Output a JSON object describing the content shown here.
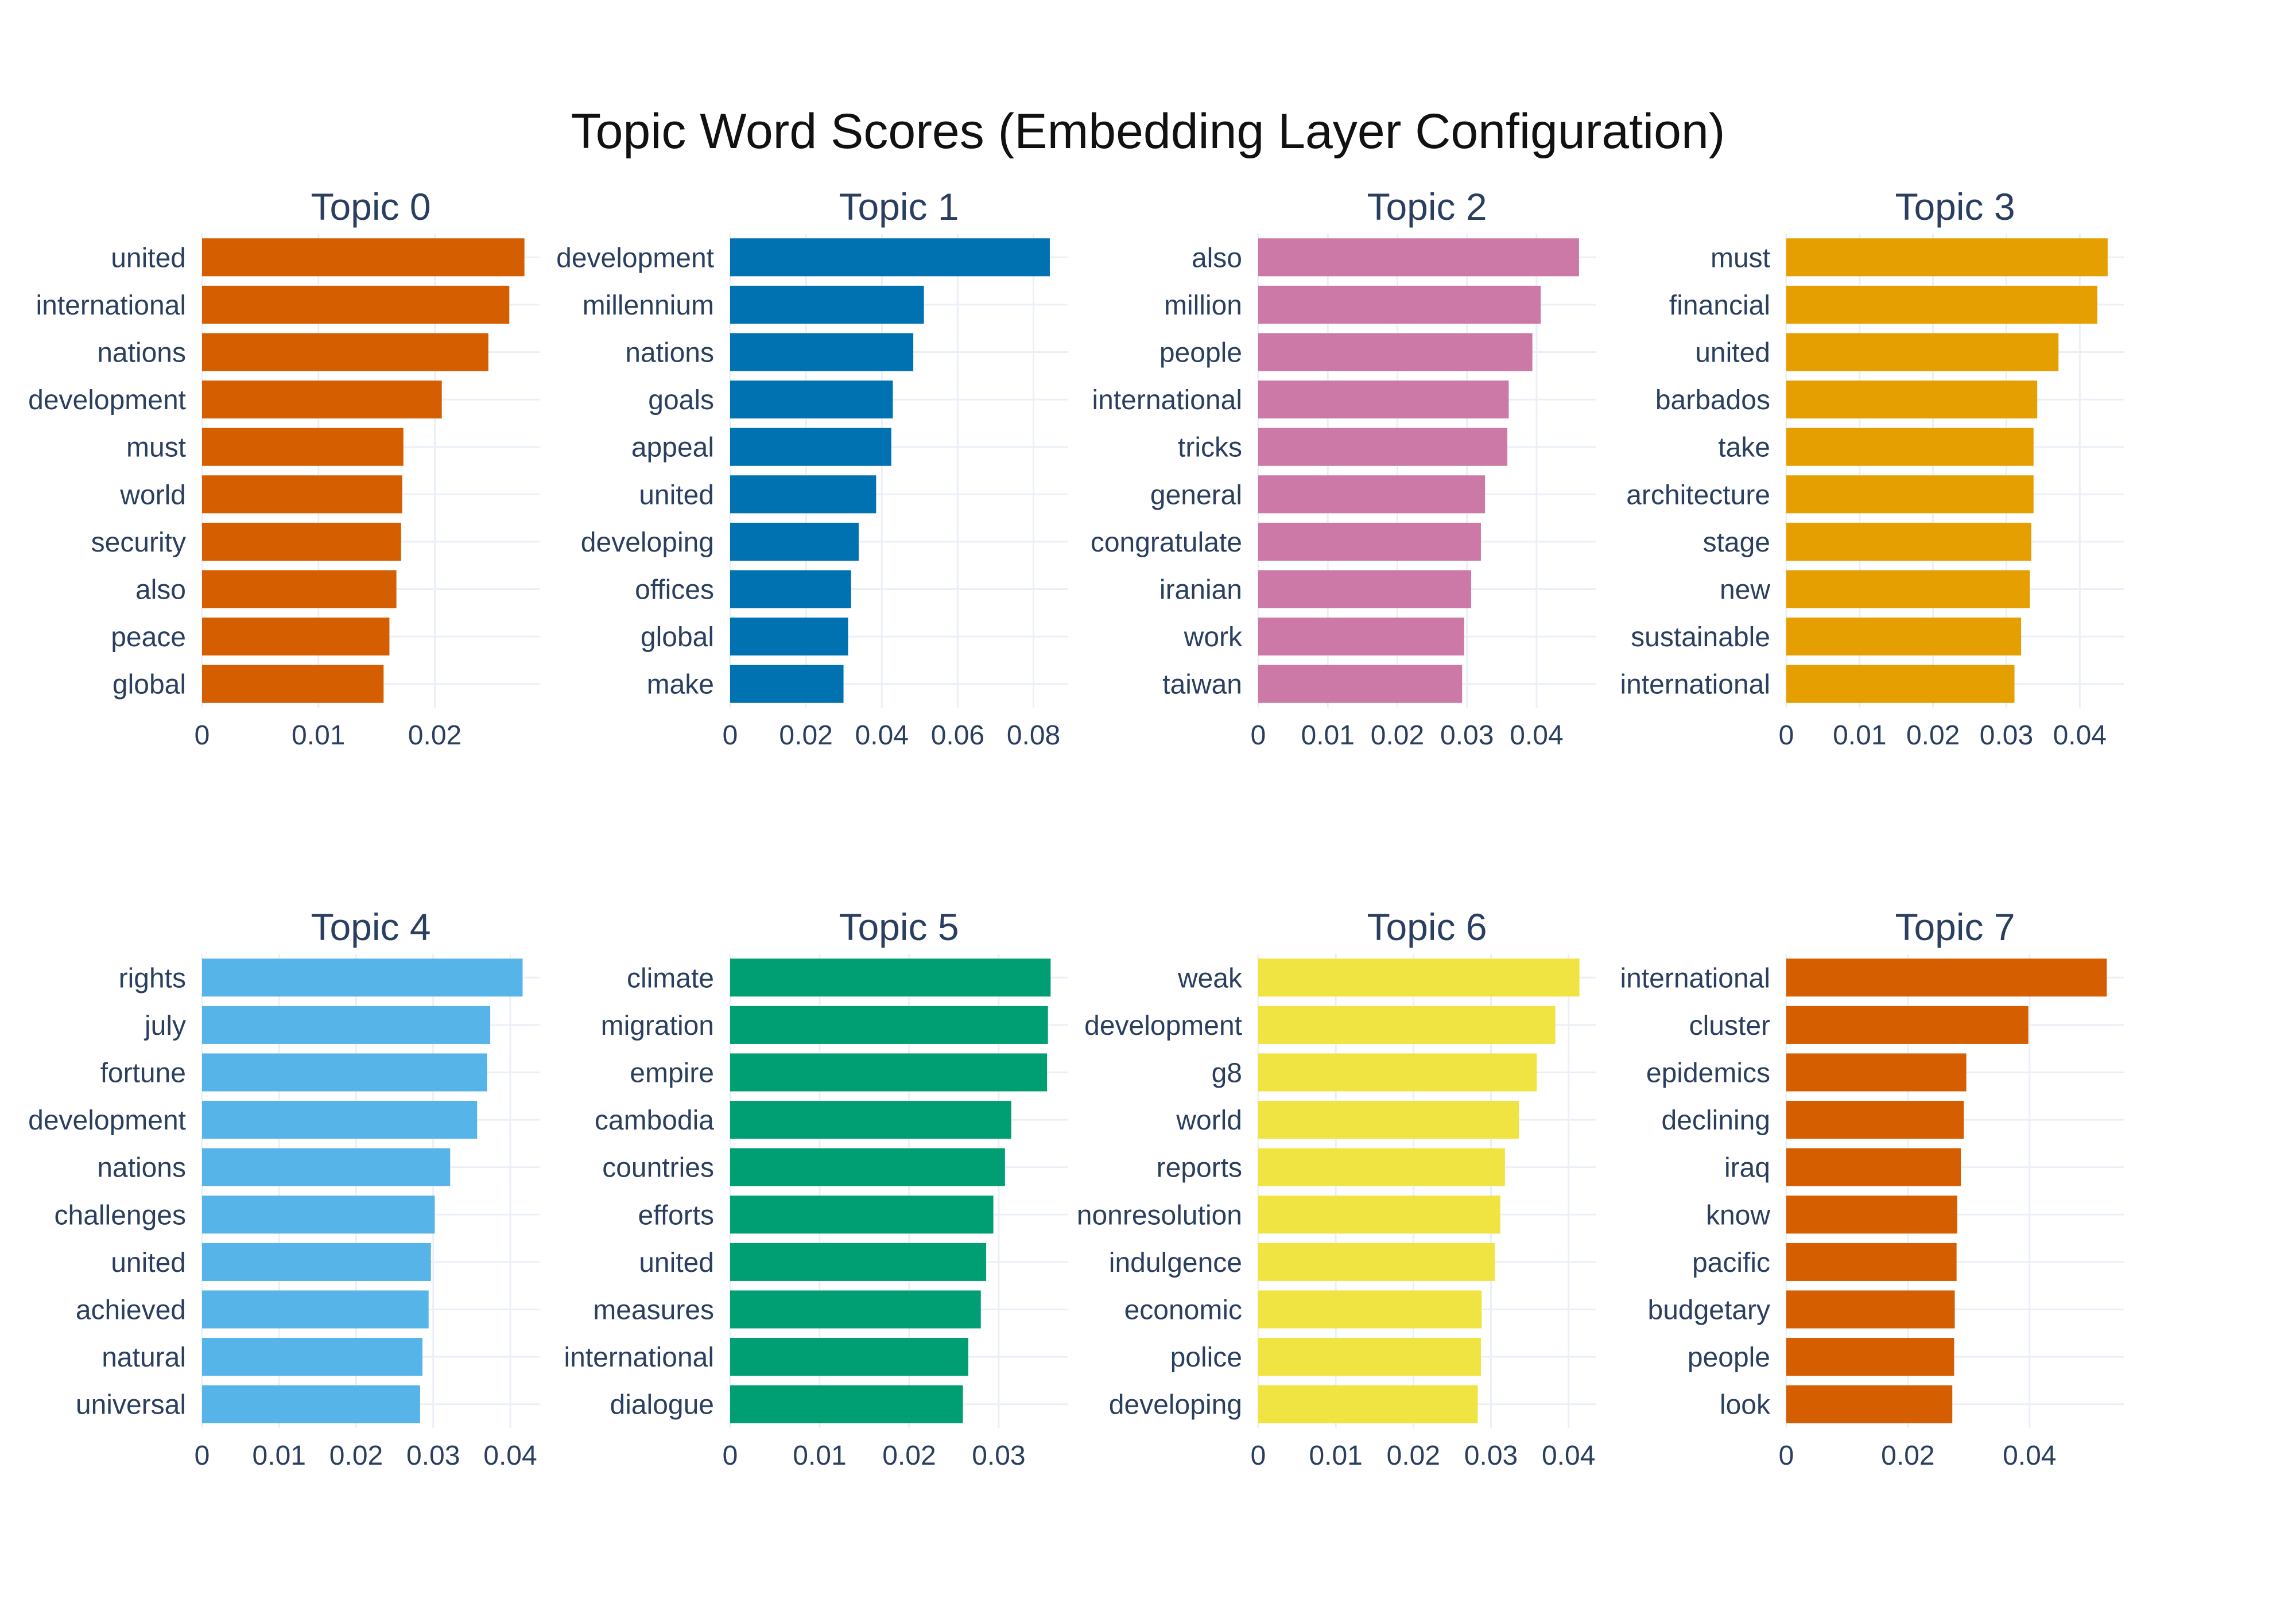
{
  "title": "Topic Word Scores (Embedding Layer Configuration)",
  "chart_data": [
    {
      "type": "bar",
      "orientation": "horizontal",
      "title": "Topic 0",
      "color": "#D55E00",
      "categories": [
        "united",
        "international",
        "nations",
        "development",
        "must",
        "world",
        "security",
        "also",
        "peace",
        "global"
      ],
      "values": [
        0.0277,
        0.0264,
        0.0246,
        0.0206,
        0.0173,
        0.0172,
        0.0171,
        0.0167,
        0.0161,
        0.0156
      ],
      "xlim": [
        0,
        0.029
      ],
      "xticks": [
        0,
        0.01,
        0.02
      ],
      "xtick_labels": [
        "0",
        "0.01",
        "0.02"
      ]
    },
    {
      "type": "bar",
      "orientation": "horizontal",
      "title": "Topic 1",
      "color": "#0072B2",
      "categories": [
        "development",
        "millennium",
        "nations",
        "goals",
        "appeal",
        "united",
        "developing",
        "offices",
        "global",
        "make"
      ],
      "values": [
        0.0843,
        0.0511,
        0.0483,
        0.0429,
        0.0425,
        0.0385,
        0.0339,
        0.0319,
        0.0311,
        0.0299
      ],
      "xlim": [
        0,
        0.089
      ],
      "xticks": [
        0,
        0.02,
        0.04,
        0.06,
        0.08
      ],
      "xtick_labels": [
        "0",
        "0.02",
        "0.04",
        "0.06",
        "0.08"
      ]
    },
    {
      "type": "bar",
      "orientation": "horizontal",
      "title": "Topic 2",
      "color": "#CC79A7",
      "categories": [
        "also",
        "million",
        "people",
        "international",
        "tricks",
        "general",
        "congratulate",
        "iranian",
        "work",
        "taiwan"
      ],
      "values": [
        0.0461,
        0.0406,
        0.0394,
        0.036,
        0.0358,
        0.0326,
        0.032,
        0.0306,
        0.0296,
        0.0293
      ],
      "xlim": [
        0,
        0.0485
      ],
      "xticks": [
        0,
        0.01,
        0.02,
        0.03,
        0.04
      ],
      "xtick_labels": [
        "0",
        "0.01",
        "0.02",
        "0.03",
        "0.04"
      ]
    },
    {
      "type": "bar",
      "orientation": "horizontal",
      "title": "Topic 3",
      "color": "#E69F00",
      "categories": [
        "must",
        "financial",
        "united",
        "barbados",
        "take",
        "architecture",
        "stage",
        "new",
        "sustainable",
        "international"
      ],
      "values": [
        0.0438,
        0.0424,
        0.0371,
        0.0342,
        0.0337,
        0.0337,
        0.0334,
        0.0332,
        0.032,
        0.0311
      ],
      "xlim": [
        0,
        0.046
      ],
      "xticks": [
        0,
        0.01,
        0.02,
        0.03,
        0.04
      ],
      "xtick_labels": [
        "0",
        "0.01",
        "0.02",
        "0.03",
        "0.04"
      ]
    },
    {
      "type": "bar",
      "orientation": "horizontal",
      "title": "Topic 4",
      "color": "#56B4E9",
      "categories": [
        "rights",
        "july",
        "fortune",
        "development",
        "nations",
        "challenges",
        "united",
        "achieved",
        "natural",
        "universal"
      ],
      "values": [
        0.0416,
        0.0374,
        0.037,
        0.0357,
        0.0322,
        0.0302,
        0.0297,
        0.0294,
        0.0286,
        0.0283
      ],
      "xlim": [
        0,
        0.0438
      ],
      "xticks": [
        0,
        0.01,
        0.02,
        0.03,
        0.04
      ],
      "xtick_labels": [
        "0",
        "0.01",
        "0.02",
        "0.03",
        "0.04"
      ]
    },
    {
      "type": "bar",
      "orientation": "horizontal",
      "title": "Topic 5",
      "color": "#009E73",
      "categories": [
        "climate",
        "migration",
        "empire",
        "cambodia",
        "countries",
        "efforts",
        "united",
        "measures",
        "international",
        "dialogue"
      ],
      "values": [
        0.0358,
        0.0355,
        0.0354,
        0.0314,
        0.0307,
        0.0294,
        0.0286,
        0.028,
        0.0266,
        0.026
      ],
      "xlim": [
        0,
        0.0377
      ],
      "xticks": [
        0,
        0.01,
        0.02,
        0.03
      ],
      "xtick_labels": [
        "0",
        "0.01",
        "0.02",
        "0.03"
      ]
    },
    {
      "type": "bar",
      "orientation": "horizontal",
      "title": "Topic 6",
      "color": "#F0E442",
      "categories": [
        "weak",
        "development",
        "g8",
        "world",
        "reports",
        "nonresolution",
        "indulgence",
        "economic",
        "police",
        "developing"
      ],
      "values": [
        0.0414,
        0.0383,
        0.0359,
        0.0336,
        0.0318,
        0.0312,
        0.0305,
        0.0288,
        0.0287,
        0.0283
      ],
      "xlim": [
        0,
        0.0435
      ],
      "xticks": [
        0,
        0.01,
        0.02,
        0.03,
        0.04
      ],
      "xtick_labels": [
        "0",
        "0.01",
        "0.02",
        "0.03",
        "0.04"
      ]
    },
    {
      "type": "bar",
      "orientation": "horizontal",
      "title": "Topic 7",
      "color": "#D55E00",
      "categories": [
        "international",
        "cluster",
        "epidemics",
        "declining",
        "iraq",
        "know",
        "pacific",
        "budgetary",
        "people",
        "look"
      ],
      "values": [
        0.0527,
        0.0398,
        0.0296,
        0.0292,
        0.0287,
        0.0281,
        0.028,
        0.0277,
        0.0276,
        0.0273
      ],
      "xlim": [
        0,
        0.0555
      ],
      "xticks": [
        0,
        0.02,
        0.04
      ],
      "xtick_labels": [
        "0",
        "0.02",
        "0.04"
      ]
    }
  ]
}
